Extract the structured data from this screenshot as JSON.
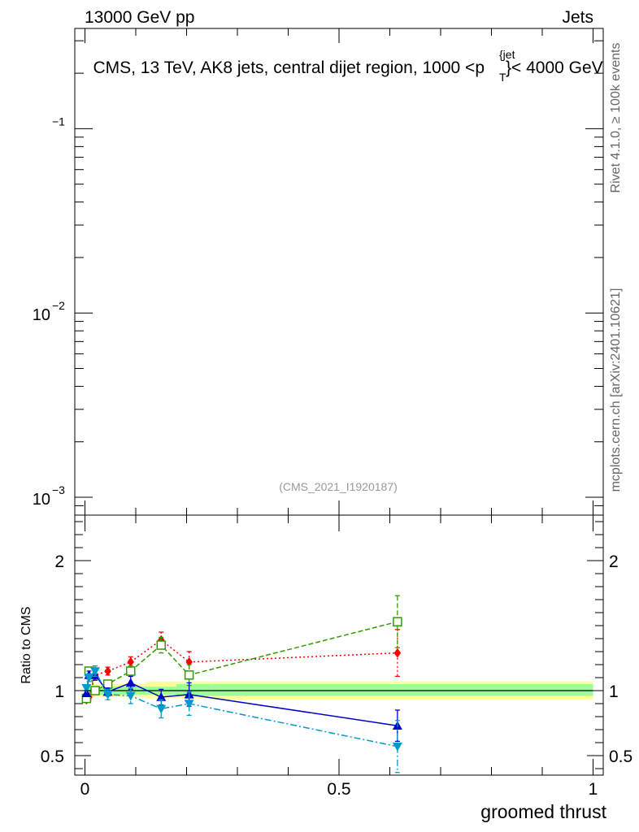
{
  "header": {
    "left": "13000 GeV pp",
    "right": "Jets",
    "title_main": "CMS, 13 TeV, AK8 jets, central dijet region, 1000 <p",
    "title_sub": "T",
    "title_sup": "{jet",
    "title_end": "}< 4000 GeV"
  },
  "side": {
    "rivet": "Rivet 4.1.0, ≥ 100k events",
    "mcplots": "mcplots.cern.ch [arXiv:2401.10621]"
  },
  "watermark": "(CMS_2021_I1920187)",
  "chart_data": [
    {
      "type": "line",
      "name": "main-panel",
      "yscale": "log",
      "ylim": [
        0.0008,
        0.35
      ],
      "xlim": [
        -0.02,
        1.02
      ],
      "ytick_labels": [
        {
          "base": "",
          "exp": "−1",
          "value": 0.1
        },
        {
          "base": "10",
          "exp": "−2",
          "value": 0.01
        },
        {
          "base": "10",
          "exp": "−3",
          "value": 0.001
        }
      ],
      "series": []
    },
    {
      "type": "line",
      "name": "ratio-panel",
      "ylabel": "Ratio to CMS",
      "xlabel": "groomed thrust",
      "xlim": [
        -0.02,
        1.02
      ],
      "ylim": [
        0.35,
        2.35
      ],
      "xticks": [
        {
          "value": 0,
          "label": "0"
        },
        {
          "value": 0.5,
          "label": "0.5"
        },
        {
          "value": 1,
          "label": "1"
        }
      ],
      "yticks": [
        {
          "value": 0.5,
          "label": "0.5"
        },
        {
          "value": 1,
          "label": "1"
        },
        {
          "value": 2,
          "label": "2"
        }
      ],
      "reference": {
        "value": 1.0,
        "bands": [
          {
            "x0": 0.0,
            "x1": 0.12,
            "inner": [
              0.97,
              1.03
            ],
            "outer": [
              0.95,
              1.05
            ]
          },
          {
            "x0": 0.12,
            "x1": 0.18,
            "inner": [
              0.97,
              1.03
            ],
            "outer": [
              0.94,
              1.07
            ]
          },
          {
            "x0": 0.18,
            "x1": 0.25,
            "inner": [
              0.96,
              1.05
            ],
            "outer": [
              0.94,
              1.07
            ]
          },
          {
            "x0": 0.25,
            "x1": 1.0,
            "inner": [
              0.96,
              1.05
            ],
            "outer": [
              0.93,
              1.07
            ]
          }
        ]
      },
      "series": [
        {
          "name": "red-diamond",
          "color": "#ff0000",
          "marker": "diamond",
          "dash": "2,3",
          "points": [
            {
              "x": 0.003,
              "y": 0.93,
              "err": 0.02
            },
            {
              "x": 0.008,
              "y": 0.95,
              "err": 0.02
            },
            {
              "x": 0.02,
              "y": 1.12,
              "err": 0.03
            },
            {
              "x": 0.045,
              "y": 1.15,
              "err": 0.03
            },
            {
              "x": 0.09,
              "y": 1.22,
              "err": 0.04
            },
            {
              "x": 0.15,
              "y": 1.39,
              "err": 0.06
            },
            {
              "x": 0.205,
              "y": 1.22,
              "err": 0.08
            },
            {
              "x": 0.615,
              "y": 1.29,
              "err": 0.18
            }
          ]
        },
        {
          "name": "green-open-square",
          "color": "#339900",
          "marker": "open-square",
          "dash": "6,3",
          "points": [
            {
              "x": 0.003,
              "y": 0.94,
              "err": 0.02
            },
            {
              "x": 0.008,
              "y": 1.15,
              "err": 0.03
            },
            {
              "x": 0.02,
              "y": 1.0,
              "err": 0.03
            },
            {
              "x": 0.045,
              "y": 1.05,
              "err": 0.03
            },
            {
              "x": 0.09,
              "y": 1.15,
              "err": 0.04
            },
            {
              "x": 0.15,
              "y": 1.35,
              "err": 0.06
            },
            {
              "x": 0.205,
              "y": 1.12,
              "err": 0.08
            },
            {
              "x": 0.615,
              "y": 1.53,
              "err": 0.2
            }
          ]
        },
        {
          "name": "blue-triangle-up",
          "color": "#0000cc",
          "marker": "triangle-up",
          "dash": "",
          "points": [
            {
              "x": 0.003,
              "y": 0.98,
              "err": 0.02
            },
            {
              "x": 0.008,
              "y": 1.12,
              "err": 0.03
            },
            {
              "x": 0.02,
              "y": 1.12,
              "err": 0.04
            },
            {
              "x": 0.045,
              "y": 0.99,
              "err": 0.03
            },
            {
              "x": 0.09,
              "y": 1.06,
              "err": 0.05
            },
            {
              "x": 0.15,
              "y": 0.95,
              "err": 0.06
            },
            {
              "x": 0.205,
              "y": 0.97,
              "err": 0.09
            },
            {
              "x": 0.615,
              "y": 0.73,
              "err": 0.12
            }
          ]
        },
        {
          "name": "cyan-triangle-down",
          "color": "#0099cc",
          "marker": "triangle-down",
          "dash": "8,3,2,3",
          "points": [
            {
              "x": 0.003,
              "y": 1.02,
              "err": 0.02
            },
            {
              "x": 0.008,
              "y": 1.1,
              "err": 0.03
            },
            {
              "x": 0.02,
              "y": 1.15,
              "err": 0.04
            },
            {
              "x": 0.045,
              "y": 0.97,
              "err": 0.04
            },
            {
              "x": 0.09,
              "y": 0.96,
              "err": 0.06
            },
            {
              "x": 0.15,
              "y": 0.86,
              "err": 0.07
            },
            {
              "x": 0.205,
              "y": 0.9,
              "err": 0.09
            },
            {
              "x": 0.615,
              "y": 0.57,
              "err": 0.2
            }
          ]
        }
      ]
    }
  ]
}
